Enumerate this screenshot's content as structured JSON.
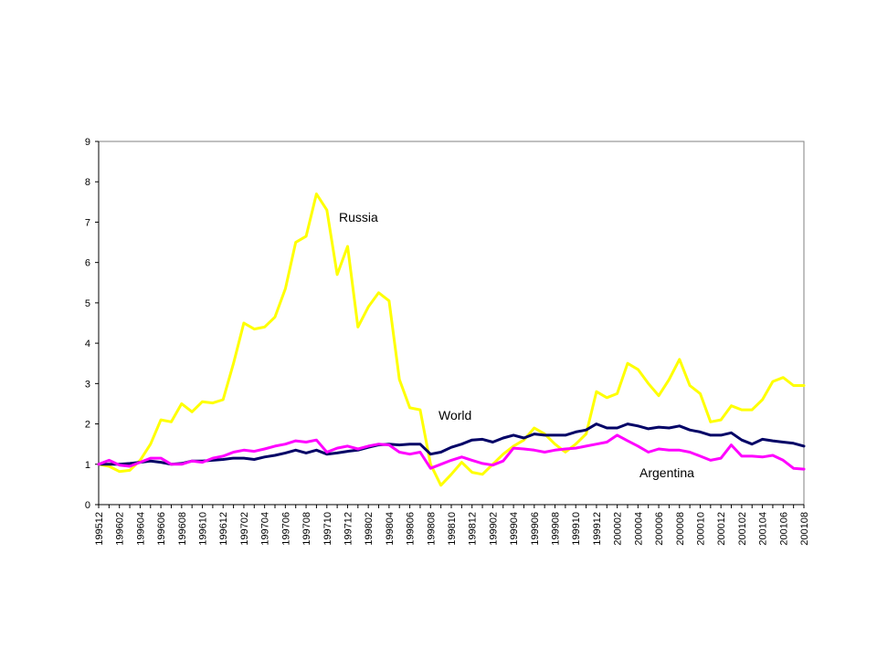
{
  "chart_data": {
    "type": "line",
    "title": "",
    "xlabel": "",
    "ylabel": "",
    "ylim": [
      0,
      9
    ],
    "yticks": [
      0,
      1,
      2,
      3,
      4,
      5,
      6,
      7,
      8,
      9
    ],
    "grid": false,
    "legend": "none",
    "x": [
      "199512",
      "199601",
      "199602",
      "199603",
      "199604",
      "199605",
      "199606",
      "199607",
      "199608",
      "199609",
      "199610",
      "199611",
      "199612",
      "199701",
      "199702",
      "199703",
      "199704",
      "199705",
      "199706",
      "199707",
      "199708",
      "199709",
      "199710",
      "199711",
      "199712",
      "199801",
      "199802",
      "199803",
      "199804",
      "199805",
      "199806",
      "199807",
      "199808",
      "199809",
      "199810",
      "199811",
      "199812",
      "199901",
      "199902",
      "199903",
      "199904",
      "199905",
      "199906",
      "199907",
      "199908",
      "199909",
      "199910",
      "199911",
      "199912",
      "200001",
      "200002",
      "200003",
      "200004",
      "200005",
      "200006",
      "200007",
      "200008",
      "200009",
      "200010",
      "200011",
      "200012",
      "200101",
      "200102",
      "200103",
      "200104",
      "200105",
      "200106",
      "200107",
      "200108"
    ],
    "x_tick_labels": [
      "199512",
      "199602",
      "199604",
      "199606",
      "199608",
      "199610",
      "199612",
      "199702",
      "199704",
      "199706",
      "199708",
      "199710",
      "199712",
      "199802",
      "199804",
      "199806",
      "199808",
      "199810",
      "199812",
      "199902",
      "199904",
      "199906",
      "199908",
      "199910",
      "199912",
      "200002",
      "200004",
      "200006",
      "200008",
      "200010",
      "200012",
      "200102",
      "200104",
      "200106",
      "200108"
    ],
    "series": [
      {
        "name": "Russia",
        "color": "#FFFF00",
        "values": [
          1.0,
          0.95,
          0.82,
          0.85,
          1.1,
          1.5,
          2.1,
          2.05,
          2.5,
          2.3,
          2.55,
          2.52,
          2.6,
          3.5,
          4.5,
          4.35,
          4.4,
          4.65,
          5.35,
          6.5,
          6.65,
          7.7,
          7.3,
          5.7,
          6.4,
          4.4,
          4.9,
          5.25,
          5.05,
          3.1,
          2.4,
          2.35,
          1.0,
          0.48,
          0.75,
          1.05,
          0.8,
          0.75,
          1.0,
          1.25,
          1.45,
          1.6,
          1.9,
          1.75,
          1.5,
          1.3,
          1.5,
          1.75,
          2.8,
          2.65,
          2.75,
          3.5,
          3.35,
          3.0,
          2.7,
          3.1,
          3.6,
          2.95,
          2.75,
          2.05,
          2.1,
          2.45,
          2.35,
          2.35,
          2.6,
          3.05,
          3.15,
          2.95,
          2.95
        ]
      },
      {
        "name": "World",
        "color": "#000066",
        "values": [
          1.0,
          1.0,
          1.0,
          1.02,
          1.05,
          1.08,
          1.05,
          1.0,
          1.02,
          1.08,
          1.08,
          1.1,
          1.12,
          1.15,
          1.15,
          1.12,
          1.18,
          1.22,
          1.28,
          1.35,
          1.28,
          1.35,
          1.25,
          1.28,
          1.32,
          1.35,
          1.42,
          1.48,
          1.5,
          1.48,
          1.5,
          1.5,
          1.25,
          1.3,
          1.42,
          1.5,
          1.6,
          1.62,
          1.55,
          1.65,
          1.72,
          1.65,
          1.75,
          1.72,
          1.72,
          1.72,
          1.8,
          1.85,
          2.0,
          1.9,
          1.9,
          2.0,
          1.95,
          1.88,
          1.92,
          1.9,
          1.95,
          1.85,
          1.8,
          1.72,
          1.72,
          1.78,
          1.6,
          1.5,
          1.62,
          1.58,
          1.55,
          1.52,
          1.45
        ]
      },
      {
        "name": "Argentina",
        "color": "#FF00FF",
        "values": [
          1.0,
          1.1,
          0.98,
          0.95,
          1.05,
          1.15,
          1.15,
          1.0,
          1.0,
          1.08,
          1.05,
          1.15,
          1.2,
          1.3,
          1.35,
          1.32,
          1.38,
          1.45,
          1.5,
          1.58,
          1.55,
          1.6,
          1.3,
          1.4,
          1.45,
          1.38,
          1.45,
          1.5,
          1.48,
          1.3,
          1.25,
          1.3,
          0.9,
          1.0,
          1.1,
          1.18,
          1.1,
          1.02,
          0.98,
          1.08,
          1.4,
          1.38,
          1.35,
          1.3,
          1.35,
          1.38,
          1.4,
          1.45,
          1.5,
          1.55,
          1.72,
          1.58,
          1.45,
          1.3,
          1.38,
          1.35,
          1.35,
          1.3,
          1.2,
          1.1,
          1.15,
          1.48,
          1.2,
          1.2,
          1.18,
          1.22,
          1.1,
          0.9,
          0.88
        ]
      }
    ],
    "annotations": [
      {
        "text": "Russia",
        "series": "Russia"
      },
      {
        "text": "World",
        "series": "World"
      },
      {
        "text": "Argentina",
        "series": "Argentina"
      }
    ]
  }
}
